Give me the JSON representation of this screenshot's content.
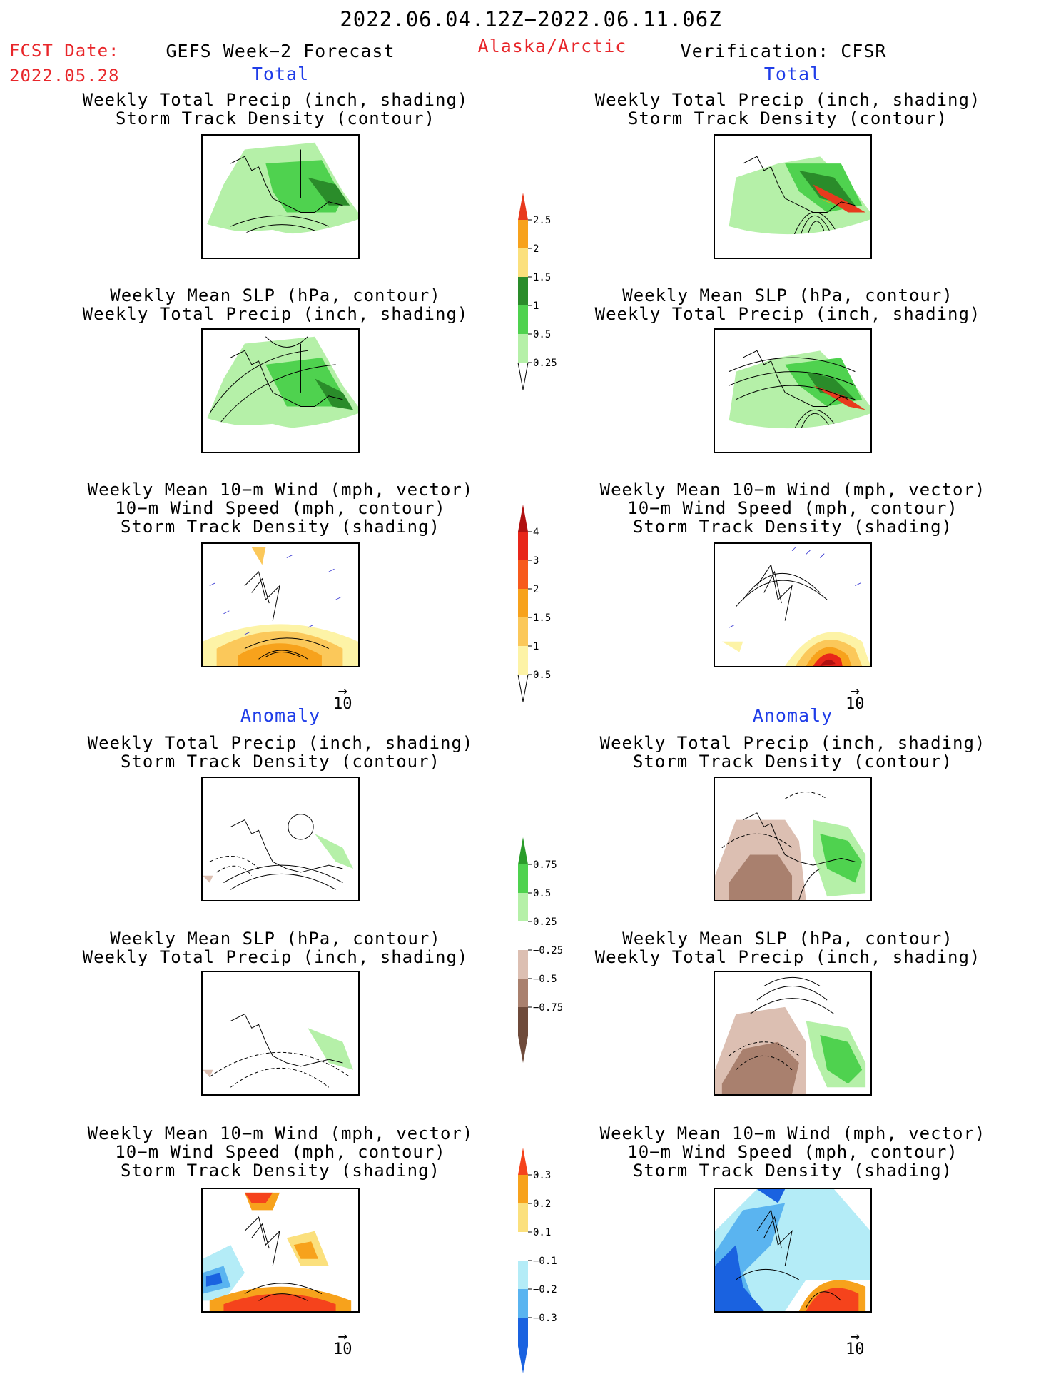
{
  "header": {
    "period": "2022.06.04.12Z−2022.06.11.06Z",
    "fcst_label": "FCST Date:",
    "fcst_date": "2022.05.28",
    "left_title": "GEFS Week−2 Forecast",
    "region": "Alaska/Arctic",
    "right_title": "Verification: CFSR"
  },
  "sections": {
    "total": "Total",
    "anomaly": "Anomaly"
  },
  "panel_titles": {
    "precip_track": [
      "Weekly Total Precip (inch, shading)",
      "Storm Track Density (contour)"
    ],
    "slp_precip": [
      "Weekly Mean SLP (hPa, contour)",
      "Weekly Total Precip (inch, shading)"
    ],
    "wind_track": [
      "Weekly Mean 10−m Wind (mph, vector)",
      "10−m Wind Speed (mph, contour)",
      "Storm Track Density (shading)"
    ]
  },
  "vector_ref": "10",
  "colorbars": {
    "total_precip": {
      "labels": [
        "2.5",
        "2",
        "1.5",
        "1",
        "0.5",
        "0.25"
      ],
      "colors": [
        "#e83a1e",
        "#f7a21c",
        "#fbe07d",
        "#2a8c2a",
        "#4fd24f",
        "#b5f0a8"
      ]
    },
    "total_track": {
      "labels": [
        "4",
        "3",
        "2",
        "1.5",
        "1",
        "0.5"
      ],
      "colors": [
        "#b01010",
        "#e8261a",
        "#f75a1c",
        "#f7a21c",
        "#fbc85a",
        "#fdf3a6"
      ]
    },
    "anom_precip": {
      "labels": [
        "0.75",
        "0.5",
        "0.25",
        "−0.25",
        "−0.5",
        "−0.75"
      ],
      "colors": [
        "#2a9c2a",
        "#4fd24f",
        "#b5f0a8",
        "#ffffff",
        "#dcbfb2",
        "#a9806e",
        "#6e4a3a"
      ]
    },
    "anom_track": {
      "labels": [
        "0.3",
        "0.2",
        "0.1",
        "−0.1",
        "−0.2",
        "−0.3"
      ],
      "colors": [
        "#f5431c",
        "#f7a21c",
        "#fbe07d",
        "#ffffff",
        "#b4ecf7",
        "#5ab4f0",
        "#1a62e0"
      ]
    }
  }
}
